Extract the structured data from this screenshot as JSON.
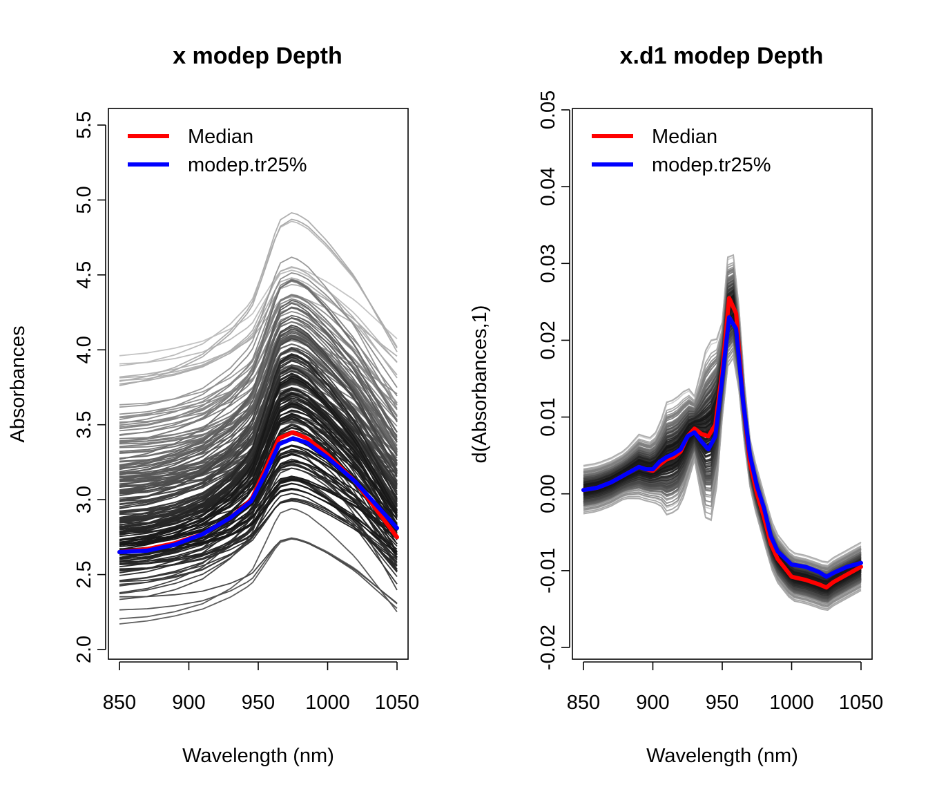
{
  "chart_data": [
    {
      "type": "line",
      "title": "x modep Depth",
      "xlabel": "Wavelength (nm)",
      "ylabel": "Absorbances",
      "xlim": [
        850,
        1050
      ],
      "ylim": [
        2.0,
        5.5
      ],
      "x_ticks": [
        "850",
        "900",
        "950",
        "1000",
        "1050"
      ],
      "y_ticks": [
        "2.0",
        "2.5",
        "3.0",
        "3.5",
        "4.0",
        "4.5",
        "5.0",
        "5.5"
      ],
      "grid": false,
      "legend_position": "top-left",
      "legend": [
        {
          "label": "Median",
          "color": "#ff0000"
        },
        {
          "label": "modep.tr25%",
          "color": "#0000ff"
        }
      ],
      "x": [
        850,
        870,
        890,
        910,
        930,
        945,
        955,
        965,
        975,
        985,
        1000,
        1020,
        1050
      ],
      "series": [
        {
          "name": "Median",
          "color": "#ff0000",
          "values": [
            2.65,
            2.67,
            2.71,
            2.77,
            2.88,
            3.0,
            3.2,
            3.41,
            3.45,
            3.41,
            3.3,
            3.12,
            2.75
          ]
        },
        {
          "name": "modep.tr25%",
          "color": "#0000ff",
          "values": [
            2.65,
            2.66,
            2.7,
            2.77,
            2.88,
            2.99,
            3.17,
            3.37,
            3.41,
            3.38,
            3.28,
            3.12,
            2.81
          ]
        }
      ],
      "background_curves": {
        "description": "around 200 spectra shaded from black (central) to light grey (outlying)",
        "base_shape": [
          0.0,
          0.02,
          0.06,
          0.12,
          0.23,
          0.35,
          0.55,
          0.76,
          0.8,
          0.76,
          0.65,
          0.47,
          0.1
        ],
        "offset_range": [
          2.05,
          4.25
        ]
      }
    },
    {
      "type": "line",
      "title": "x.d1 modep Depth",
      "xlabel": "Wavelength (nm)",
      "ylabel": "d(Absorbances,1)",
      "xlim": [
        850,
        1050
      ],
      "ylim": [
        -0.02,
        0.05
      ],
      "x_ticks": [
        "850",
        "900",
        "950",
        "1000",
        "1050"
      ],
      "y_ticks": [
        "-0.02",
        "-0.01",
        "0.00",
        "0.01",
        "0.02",
        "0.03",
        "0.04",
        "0.05"
      ],
      "grid": false,
      "legend_position": "top-left",
      "legend": [
        {
          "label": "Median",
          "color": "#ff0000"
        },
        {
          "label": "modep.tr25%",
          "color": "#0000ff"
        }
      ],
      "x": [
        850,
        860,
        870,
        880,
        890,
        895,
        900,
        905,
        910,
        915,
        920,
        925,
        930,
        935,
        940,
        945,
        950,
        955,
        960,
        965,
        970,
        975,
        980,
        985,
        990,
        1000,
        1010,
        1020,
        1025,
        1030,
        1040,
        1050
      ],
      "series": [
        {
          "name": "Median",
          "color": "#ff0000",
          "values": [
            0.0005,
            0.0008,
            0.0015,
            0.0025,
            0.0035,
            0.0032,
            0.003,
            0.0038,
            0.0045,
            0.0048,
            0.0055,
            0.0075,
            0.0085,
            0.0078,
            0.0075,
            0.009,
            0.016,
            0.0255,
            0.0235,
            0.012,
            0.004,
            0.0,
            -0.003,
            -0.0065,
            -0.0085,
            -0.0108,
            -0.0112,
            -0.0118,
            -0.0122,
            -0.0115,
            -0.0105,
            -0.0095
          ]
        },
        {
          "name": "modep.tr25%",
          "color": "#0000ff",
          "values": [
            0.0005,
            0.0008,
            0.0015,
            0.0025,
            0.0035,
            0.0032,
            0.0032,
            0.0042,
            0.0048,
            0.0052,
            0.0058,
            0.0075,
            0.008,
            0.0068,
            0.0058,
            0.0075,
            0.015,
            0.023,
            0.0215,
            0.012,
            0.005,
            0.001,
            -0.0018,
            -0.0055,
            -0.0075,
            -0.0092,
            -0.0095,
            -0.0102,
            -0.0108,
            -0.0103,
            -0.0095,
            -0.009
          ]
        }
      ],
      "background_curves": {
        "description": "around 200 derivative spectra shaded from black (central) to light grey (outlying)",
        "spread": [
          0.003,
          0.003,
          0.003,
          0.003,
          0.004,
          0.004,
          0.004,
          0.005,
          0.007,
          0.007,
          0.007,
          0.006,
          0.004,
          0.008,
          0.012,
          0.01,
          0.006,
          0.007,
          0.006,
          0.004,
          0.003,
          0.003,
          0.003,
          0.003,
          0.003,
          0.003,
          0.003,
          0.003,
          0.003,
          0.003,
          0.003,
          0.003
        ]
      }
    }
  ]
}
